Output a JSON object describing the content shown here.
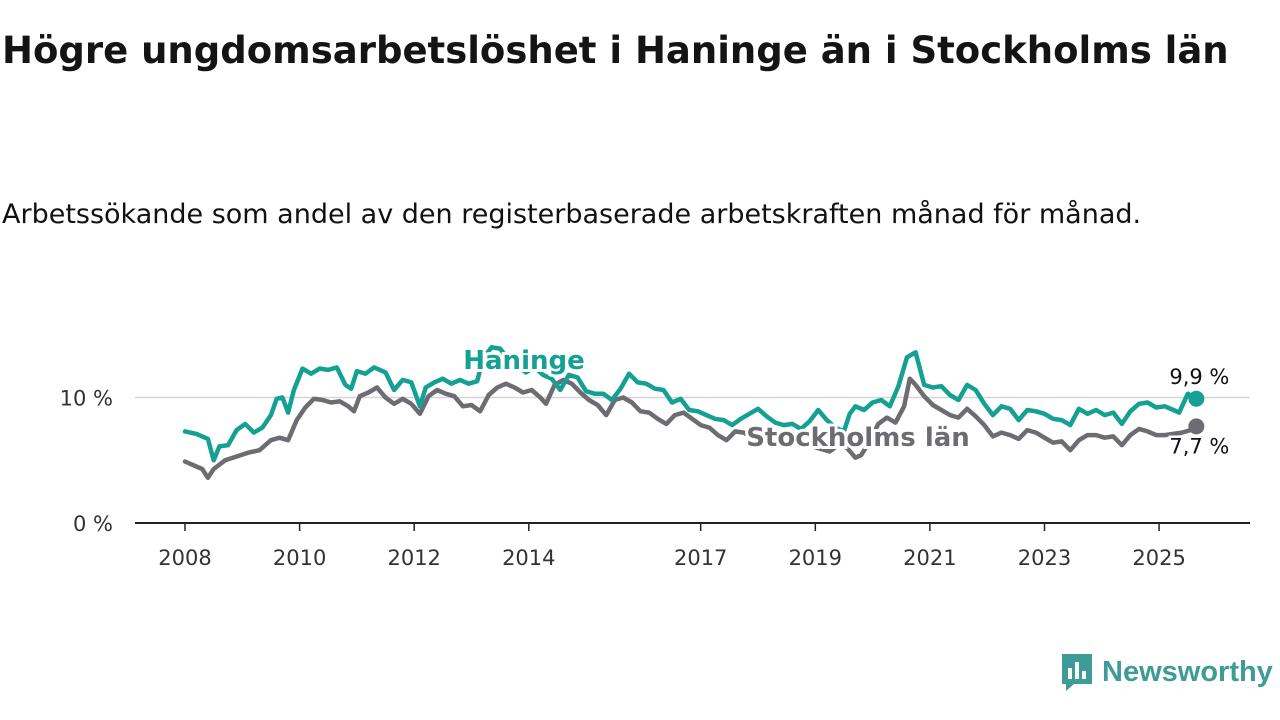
{
  "header": {
    "title": "Högre ungdomsarbetslöshet i Haninge än i Stockholms län",
    "subtitle": "Arbetssökande som andel av den registerbaserade arbetskraften månad för månad."
  },
  "brand": {
    "name": "Newsworthy",
    "icon": "newsworthy-logo-icon",
    "color": "#3f9b95"
  },
  "chart_data": {
    "type": "line",
    "title": "Högre ungdomsarbetslöshet i Haninge än i Stockholms län",
    "subtitle": "Arbetssökande som andel av den registerbaserade arbetskraften månad för månad.",
    "x_unit": "year",
    "xlim": [
      2007.0,
      2026.6
    ],
    "ylim": [
      0,
      16
    ],
    "yticks": [
      0,
      10
    ],
    "ytick_labels": [
      "0 %",
      "10 %"
    ],
    "xticks": [
      2008,
      2010,
      2012,
      2014,
      2017,
      2019,
      2021,
      2023,
      2025
    ],
    "xtick_labels": [
      "2008",
      "2010",
      "2012",
      "2014",
      "2017",
      "2019",
      "2021",
      "2023",
      "2025"
    ],
    "grid": "horizontal",
    "series": [
      {
        "name": "Haninge",
        "label": "Haninge",
        "color": "#14a093",
        "end_label": "9,9 %",
        "points": [
          [
            2008.0,
            7.3
          ],
          [
            2008.2,
            7.1
          ],
          [
            2008.4,
            6.7
          ],
          [
            2008.5,
            5.0
          ],
          [
            2008.6,
            6.1
          ],
          [
            2008.75,
            6.2
          ],
          [
            2008.9,
            7.4
          ],
          [
            2009.05,
            7.9
          ],
          [
            2009.2,
            7.2
          ],
          [
            2009.35,
            7.6
          ],
          [
            2009.5,
            8.6
          ],
          [
            2009.6,
            9.9
          ],
          [
            2009.7,
            10.0
          ],
          [
            2009.8,
            8.8
          ],
          [
            2009.9,
            10.6
          ],
          [
            2010.05,
            12.3
          ],
          [
            2010.2,
            11.9
          ],
          [
            2010.35,
            12.3
          ],
          [
            2010.5,
            12.2
          ],
          [
            2010.65,
            12.4
          ],
          [
            2010.8,
            11.0
          ],
          [
            2010.9,
            10.7
          ],
          [
            2011.0,
            12.1
          ],
          [
            2011.15,
            11.9
          ],
          [
            2011.3,
            12.4
          ],
          [
            2011.5,
            12.0
          ],
          [
            2011.65,
            10.6
          ],
          [
            2011.8,
            11.4
          ],
          [
            2011.95,
            11.2
          ],
          [
            2012.1,
            9.3
          ],
          [
            2012.2,
            10.8
          ],
          [
            2012.35,
            11.2
          ],
          [
            2012.5,
            11.5
          ],
          [
            2012.65,
            11.1
          ],
          [
            2012.8,
            11.4
          ],
          [
            2012.95,
            11.1
          ],
          [
            2013.1,
            11.3
          ],
          [
            2013.2,
            13.1
          ],
          [
            2013.35,
            14.0
          ],
          [
            2013.5,
            13.9
          ],
          [
            2013.65,
            13.0
          ],
          [
            2013.8,
            12.5
          ],
          [
            2013.95,
            12.0
          ],
          [
            2014.1,
            12.4
          ],
          [
            2014.25,
            11.8
          ],
          [
            2014.4,
            11.5
          ],
          [
            2014.55,
            10.6
          ],
          [
            2014.7,
            11.8
          ],
          [
            2014.85,
            11.6
          ],
          [
            2015.0,
            10.5
          ],
          [
            2015.15,
            10.3
          ],
          [
            2015.3,
            10.3
          ],
          [
            2015.45,
            9.8
          ],
          [
            2015.6,
            10.7
          ],
          [
            2015.75,
            11.9
          ],
          [
            2015.9,
            11.2
          ],
          [
            2016.05,
            11.1
          ],
          [
            2016.2,
            10.7
          ],
          [
            2016.35,
            10.6
          ],
          [
            2016.5,
            9.6
          ],
          [
            2016.65,
            9.9
          ],
          [
            2016.8,
            9.0
          ],
          [
            2016.95,
            8.9
          ],
          [
            2017.1,
            8.6
          ],
          [
            2017.25,
            8.3
          ],
          [
            2017.4,
            8.2
          ],
          [
            2017.55,
            7.8
          ],
          [
            2017.7,
            8.3
          ],
          [
            2017.85,
            8.7
          ],
          [
            2018.0,
            9.1
          ],
          [
            2018.15,
            8.5
          ],
          [
            2018.3,
            8.0
          ],
          [
            2018.45,
            7.8
          ],
          [
            2018.6,
            7.9
          ],
          [
            2018.75,
            7.5
          ],
          [
            2018.9,
            8.1
          ],
          [
            2019.05,
            9.0
          ],
          [
            2019.2,
            8.2
          ],
          [
            2019.35,
            7.6
          ],
          [
            2019.5,
            7.3
          ],
          [
            2019.6,
            8.7
          ],
          [
            2019.7,
            9.3
          ],
          [
            2019.85,
            9.0
          ],
          [
            2020.0,
            9.6
          ],
          [
            2020.15,
            9.8
          ],
          [
            2020.3,
            9.3
          ],
          [
            2020.45,
            10.9
          ],
          [
            2020.6,
            13.2
          ],
          [
            2020.75,
            13.6
          ],
          [
            2020.9,
            11.0
          ],
          [
            2021.05,
            10.8
          ],
          [
            2021.2,
            10.9
          ],
          [
            2021.35,
            10.2
          ],
          [
            2021.5,
            9.8
          ],
          [
            2021.65,
            11.0
          ],
          [
            2021.8,
            10.6
          ],
          [
            2021.95,
            9.5
          ],
          [
            2022.1,
            8.6
          ],
          [
            2022.25,
            9.3
          ],
          [
            2022.4,
            9.1
          ],
          [
            2022.55,
            8.2
          ],
          [
            2022.7,
            9.0
          ],
          [
            2022.85,
            8.9
          ],
          [
            2023.0,
            8.7
          ],
          [
            2023.15,
            8.3
          ],
          [
            2023.3,
            8.2
          ],
          [
            2023.45,
            7.8
          ],
          [
            2023.6,
            9.1
          ],
          [
            2023.75,
            8.7
          ],
          [
            2023.9,
            9.0
          ],
          [
            2024.05,
            8.6
          ],
          [
            2024.2,
            8.8
          ],
          [
            2024.35,
            7.9
          ],
          [
            2024.5,
            8.9
          ],
          [
            2024.65,
            9.5
          ],
          [
            2024.8,
            9.6
          ],
          [
            2024.95,
            9.2
          ],
          [
            2025.1,
            9.3
          ],
          [
            2025.25,
            9.0
          ],
          [
            2025.35,
            8.8
          ],
          [
            2025.5,
            10.3
          ],
          [
            2025.65,
            9.9
          ]
        ]
      },
      {
        "name": "Stockholms län",
        "label": "Stockholms län",
        "color": "#6e6c73",
        "end_label": "7,7 %",
        "points": [
          [
            2008.0,
            4.9
          ],
          [
            2008.15,
            4.6
          ],
          [
            2008.3,
            4.3
          ],
          [
            2008.4,
            3.6
          ],
          [
            2008.5,
            4.3
          ],
          [
            2008.7,
            5.0
          ],
          [
            2008.9,
            5.3
          ],
          [
            2009.1,
            5.6
          ],
          [
            2009.3,
            5.8
          ],
          [
            2009.5,
            6.6
          ],
          [
            2009.65,
            6.8
          ],
          [
            2009.8,
            6.6
          ],
          [
            2009.95,
            8.2
          ],
          [
            2010.1,
            9.2
          ],
          [
            2010.25,
            9.9
          ],
          [
            2010.4,
            9.8
          ],
          [
            2010.55,
            9.6
          ],
          [
            2010.7,
            9.7
          ],
          [
            2010.85,
            9.3
          ],
          [
            2010.95,
            8.9
          ],
          [
            2011.05,
            10.1
          ],
          [
            2011.2,
            10.4
          ],
          [
            2011.35,
            10.8
          ],
          [
            2011.5,
            10.0
          ],
          [
            2011.65,
            9.5
          ],
          [
            2011.8,
            9.9
          ],
          [
            2011.95,
            9.5
          ],
          [
            2012.1,
            8.7
          ],
          [
            2012.25,
            10.1
          ],
          [
            2012.4,
            10.6
          ],
          [
            2012.55,
            10.3
          ],
          [
            2012.7,
            10.1
          ],
          [
            2012.85,
            9.3
          ],
          [
            2013.0,
            9.4
          ],
          [
            2013.15,
            8.9
          ],
          [
            2013.3,
            10.2
          ],
          [
            2013.45,
            10.8
          ],
          [
            2013.6,
            11.1
          ],
          [
            2013.75,
            10.8
          ],
          [
            2013.9,
            10.4
          ],
          [
            2014.05,
            10.6
          ],
          [
            2014.2,
            10.0
          ],
          [
            2014.3,
            9.5
          ],
          [
            2014.45,
            11.0
          ],
          [
            2014.6,
            11.4
          ],
          [
            2014.75,
            11.1
          ],
          [
            2014.9,
            10.4
          ],
          [
            2015.05,
            9.8
          ],
          [
            2015.2,
            9.4
          ],
          [
            2015.35,
            8.6
          ],
          [
            2015.5,
            9.8
          ],
          [
            2015.65,
            10.0
          ],
          [
            2015.8,
            9.6
          ],
          [
            2015.95,
            8.9
          ],
          [
            2016.1,
            8.8
          ],
          [
            2016.25,
            8.3
          ],
          [
            2016.4,
            7.9
          ],
          [
            2016.55,
            8.6
          ],
          [
            2016.7,
            8.8
          ],
          [
            2016.85,
            8.3
          ],
          [
            2017.0,
            7.8
          ],
          [
            2017.15,
            7.6
          ],
          [
            2017.3,
            7.0
          ],
          [
            2017.45,
            6.6
          ],
          [
            2017.6,
            7.3
          ],
          [
            2017.75,
            7.2
          ],
          [
            2017.9,
            6.8
          ],
          [
            2018.05,
            6.6
          ],
          [
            2018.2,
            6.2
          ],
          [
            2018.35,
            6.4
          ],
          [
            2018.5,
            7.1
          ],
          [
            2018.65,
            6.9
          ],
          [
            2018.8,
            6.2
          ],
          [
            2018.95,
            6.1
          ],
          [
            2019.1,
            5.9
          ],
          [
            2019.25,
            5.7
          ],
          [
            2019.4,
            6.2
          ],
          [
            2019.55,
            6.0
          ],
          [
            2019.7,
            5.2
          ],
          [
            2019.8,
            5.4
          ],
          [
            2019.95,
            6.5
          ],
          [
            2020.1,
            7.9
          ],
          [
            2020.25,
            8.4
          ],
          [
            2020.4,
            8.0
          ],
          [
            2020.55,
            9.3
          ],
          [
            2020.65,
            11.5
          ],
          [
            2020.75,
            11.0
          ],
          [
            2020.9,
            10.1
          ],
          [
            2021.05,
            9.4
          ],
          [
            2021.2,
            9.0
          ],
          [
            2021.35,
            8.6
          ],
          [
            2021.5,
            8.4
          ],
          [
            2021.65,
            9.1
          ],
          [
            2021.8,
            8.5
          ],
          [
            2021.95,
            7.8
          ],
          [
            2022.1,
            6.9
          ],
          [
            2022.25,
            7.2
          ],
          [
            2022.4,
            7.0
          ],
          [
            2022.55,
            6.7
          ],
          [
            2022.7,
            7.4
          ],
          [
            2022.85,
            7.2
          ],
          [
            2023.0,
            6.8
          ],
          [
            2023.15,
            6.4
          ],
          [
            2023.3,
            6.5
          ],
          [
            2023.45,
            5.8
          ],
          [
            2023.6,
            6.6
          ],
          [
            2023.75,
            7.0
          ],
          [
            2023.9,
            7.0
          ],
          [
            2024.05,
            6.8
          ],
          [
            2024.2,
            6.9
          ],
          [
            2024.35,
            6.2
          ],
          [
            2024.5,
            7.0
          ],
          [
            2024.65,
            7.5
          ],
          [
            2024.8,
            7.3
          ],
          [
            2024.95,
            7.0
          ],
          [
            2025.1,
            7.0
          ],
          [
            2025.25,
            7.1
          ],
          [
            2025.4,
            7.2
          ],
          [
            2025.55,
            7.4
          ],
          [
            2025.65,
            7.7
          ]
        ]
      }
    ]
  }
}
